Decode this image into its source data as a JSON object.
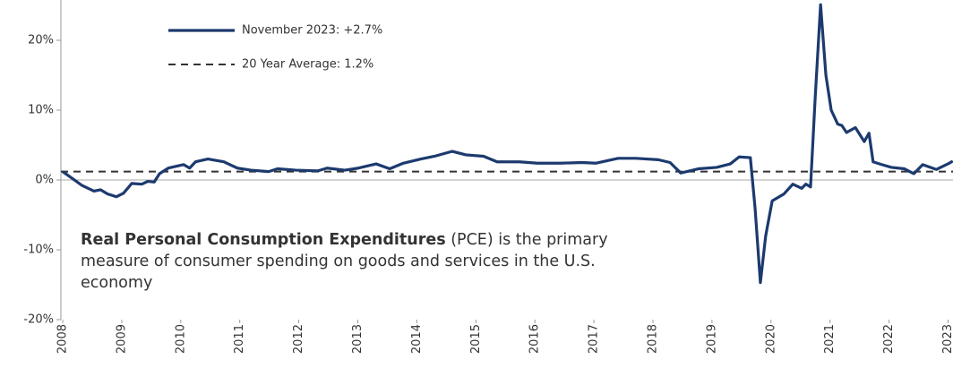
{
  "chart_data": {
    "type": "line",
    "series": [
      {
        "name": "November 2023: +2.7%",
        "color": "#1c3a6e",
        "x": [
          2008.0,
          2008.15,
          2008.33,
          2008.53,
          2008.64,
          2008.76,
          2008.91,
          2009.03,
          2009.17,
          2009.34,
          2009.44,
          2009.55,
          2009.64,
          2009.79,
          2010.05,
          2010.15,
          2010.25,
          2010.46,
          2010.73,
          2010.96,
          2011.19,
          2011.49,
          2011.64,
          2011.95,
          2012.32,
          2012.48,
          2012.78,
          2013.01,
          2013.31,
          2013.54,
          2013.77,
          2014.07,
          2014.3,
          2014.6,
          2014.83,
          2015.13,
          2015.36,
          2015.74,
          2016.04,
          2016.42,
          2016.8,
          2017.03,
          2017.41,
          2017.71,
          2018.09,
          2018.29,
          2018.47,
          2018.77,
          2019.08,
          2019.31,
          2019.46,
          2019.65,
          2019.73,
          2019.82,
          2019.91,
          2020.02,
          2020.22,
          2020.37,
          2020.52,
          2020.59,
          2020.67,
          2020.75,
          2020.84,
          2020.93,
          2021.02,
          2021.13,
          2021.2,
          2021.28,
          2021.43,
          2021.58,
          2021.66,
          2021.73,
          2021.88,
          2022.04,
          2022.26,
          2022.42,
          2022.57,
          2022.8,
          2023.02,
          2023.08
        ],
        "values": [
          1.2,
          0.3,
          -0.8,
          -1.6,
          -1.4,
          -2.0,
          -2.4,
          -1.9,
          -0.5,
          -0.6,
          -0.2,
          -0.3,
          0.9,
          1.7,
          2.2,
          1.7,
          2.6,
          3.0,
          2.6,
          1.7,
          1.4,
          1.2,
          1.6,
          1.4,
          1.3,
          1.7,
          1.4,
          1.7,
          2.3,
          1.6,
          2.4,
          3.0,
          3.4,
          4.1,
          3.6,
          3.4,
          2.6,
          2.6,
          2.4,
          2.4,
          2.5,
          2.4,
          3.1,
          3.1,
          2.9,
          2.5,
          1.0,
          1.6,
          1.8,
          2.3,
          3.3,
          3.2,
          -4.0,
          -14.7,
          -8.0,
          -3.0,
          -2.0,
          -0.6,
          -1.2,
          -0.6,
          -1.0,
          12.0,
          25.1,
          15.0,
          10.0,
          8.0,
          7.8,
          6.8,
          7.5,
          5.5,
          6.7,
          2.6,
          2.2,
          1.8,
          1.6,
          0.9,
          2.2,
          1.5,
          2.4,
          2.7
        ]
      }
    ],
    "reference_line": {
      "name": "20 Year Average: 1.2%",
      "value": 1.2,
      "color": "#333333"
    },
    "annotation": {
      "bold": "Real Personal Consumption Expenditures",
      "text": " (PCE) is the primary measure of consumer spending on goods and services in the U.S. economy"
    },
    "xlim": [
      2008,
      2023.1
    ],
    "xticks": [
      2008,
      2009,
      2010,
      2011,
      2012,
      2013,
      2014,
      2015,
      2016,
      2017,
      2018,
      2019,
      2020,
      2021,
      2022,
      2023
    ],
    "ylim": [
      -20,
      25
    ],
    "yticks": [
      {
        "value": -20,
        "label": "-20%"
      },
      {
        "value": -10,
        "label": "-10%"
      },
      {
        "value": 0,
        "label": "0%"
      },
      {
        "value": 10,
        "label": "10%"
      },
      {
        "value": 20,
        "label": "20%"
      }
    ],
    "grid": false
  }
}
